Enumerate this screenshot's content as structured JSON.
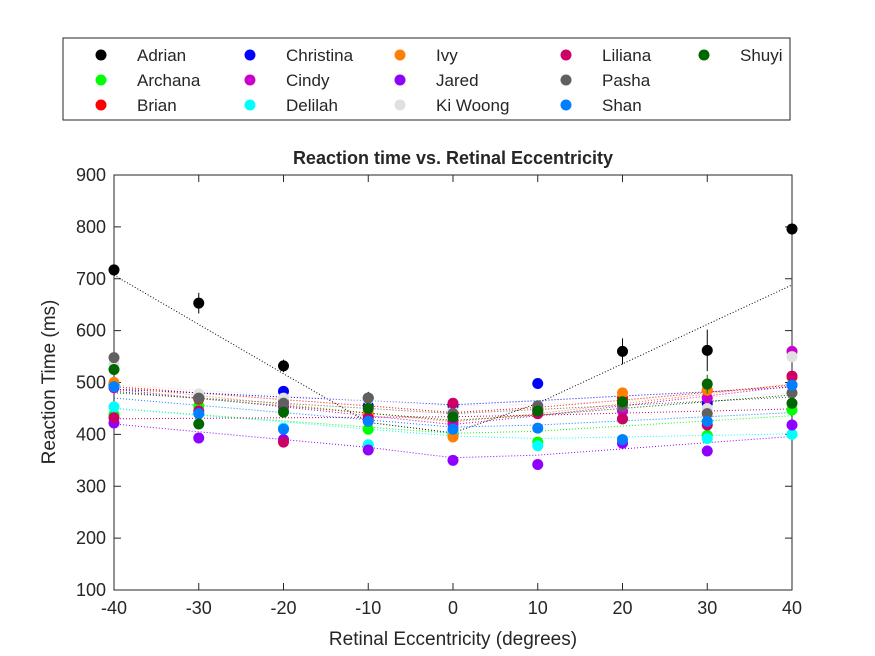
{
  "chart_data": {
    "type": "scatter",
    "title": "Reaction time vs. Retinal Eccentricity",
    "xlabel": "Retinal Eccentricity (degrees)",
    "ylabel": "Reaction Time (ms)",
    "xlim": [
      -40,
      40
    ],
    "ylim": [
      100,
      900
    ],
    "x_ticks": [
      -40,
      -30,
      -20,
      -10,
      0,
      10,
      20,
      30,
      40
    ],
    "y_ticks": [
      100,
      200,
      300,
      400,
      500,
      600,
      700,
      800,
      900
    ],
    "grid": false,
    "legend_position": "top, outside plot area, 5 columns",
    "fit_lines": "dotted V-shaped fit per series",
    "x": [
      -40,
      -30,
      -20,
      -10,
      0,
      10,
      20,
      30,
      40
    ],
    "series": [
      {
        "name": "Adrian",
        "color": "#000000",
        "values": [
          717,
          653,
          532,
          470,
          402,
          448,
          560,
          562,
          796
        ],
        "fit": [
          707,
          612,
          517,
          423,
          403,
          460,
          536,
          612,
          688
        ],
        "error": [
          8,
          20,
          12,
          12,
          10,
          12,
          25,
          40,
          10
        ]
      },
      {
        "name": "Archana",
        "color": "#00ff00",
        "values": [
          438,
          455,
          445,
          410,
          398,
          385,
          430,
          398,
          447
        ],
        "fit": [
          450,
          438,
          426,
          414,
          402,
          406,
          416,
          426,
          436
        ],
        "error": [
          8,
          8,
          8,
          8,
          8,
          8,
          8,
          8,
          8
        ]
      },
      {
        "name": "Brian",
        "color": "#ff0000",
        "values": [
          497,
          468,
          465,
          440,
          425,
          450,
          470,
          485,
          512
        ],
        "fit": [
          492,
          480,
          467,
          455,
          442,
          452,
          466,
          481,
          495
        ],
        "error": [
          8,
          8,
          10,
          8,
          8,
          8,
          10,
          8,
          8
        ]
      },
      {
        "name": "Christina",
        "color": "#0000ff",
        "values": [
          495,
          472,
          483,
          455,
          455,
          498,
          460,
          460,
          495
        ],
        "fit": [
          487,
          480,
          472,
          465,
          457,
          465,
          474,
          482,
          491
        ],
        "error": [
          8,
          8,
          8,
          8,
          8,
          10,
          8,
          8,
          8
        ]
      },
      {
        "name": "Cindy",
        "color": "#cc00cc",
        "values": [
          490,
          470,
          453,
          428,
          420,
          440,
          445,
          470,
          560
        ],
        "fit": [
          487,
          470,
          453,
          436,
          419,
          436,
          455,
          474,
          493
        ],
        "error": [
          8,
          8,
          8,
          8,
          8,
          8,
          8,
          8,
          8
        ]
      },
      {
        "name": "Delilah",
        "color": "#00ffff",
        "values": [
          453,
          440,
          412,
          380,
          405,
          378,
          390,
          392,
          400
        ],
        "fit": [
          450,
          437,
          424,
          410,
          397,
          392,
          395,
          398,
          401
        ],
        "error": [
          8,
          8,
          8,
          8,
          8,
          8,
          8,
          8,
          8
        ]
      },
      {
        "name": "Ivy",
        "color": "#ff8000",
        "values": [
          500,
          470,
          467,
          440,
          395,
          445,
          480,
          485,
          510
        ],
        "fit": [
          492,
          475,
          458,
          441,
          424,
          440,
          459,
          478,
          497
        ],
        "error": [
          8,
          8,
          8,
          8,
          8,
          8,
          10,
          8,
          8
        ]
      },
      {
        "name": "Jared",
        "color": "#8f00ff",
        "values": [
          422,
          393,
          390,
          370,
          350,
          342,
          383,
          368,
          418
        ],
        "fit": [
          420,
          405,
          390,
          375,
          355,
          360,
          372,
          384,
          396
        ],
        "error": [
          8,
          8,
          10,
          8,
          8,
          8,
          8,
          8,
          8
        ]
      },
      {
        "name": "Ki Woong",
        "color": "#e0e0e0",
        "values": [
          535,
          478,
          470,
          468,
          445,
          455,
          455,
          450,
          550
        ],
        "fit": [
          495,
          485,
          475,
          465,
          455,
          458,
          465,
          472,
          479
        ],
        "error": [
          8,
          8,
          8,
          8,
          8,
          8,
          8,
          8,
          8
        ]
      },
      {
        "name": "Liliana",
        "color": "#cc0066",
        "values": [
          432,
          445,
          385,
          432,
          460,
          440,
          430,
          418,
          512
        ],
        "fit": [
          430,
          431,
          432,
          433,
          434,
          437,
          441,
          445,
          449
        ],
        "error": [
          8,
          8,
          8,
          8,
          8,
          8,
          8,
          8,
          8
        ]
      },
      {
        "name": "Pasha",
        "color": "#606060",
        "values": [
          548,
          470,
          460,
          470,
          440,
          455,
          455,
          440,
          480
        ],
        "fit": [
          480,
          470,
          460,
          450,
          440,
          448,
          456,
          464,
          472
        ],
        "error": [
          8,
          8,
          8,
          8,
          8,
          8,
          8,
          8,
          8
        ]
      },
      {
        "name": "Shan",
        "color": "#0080ff",
        "values": [
          492,
          440,
          410,
          425,
          410,
          412,
          390,
          425,
          495
        ],
        "fit": [
          470,
          456,
          442,
          428,
          414,
          418,
          426,
          434,
          442
        ],
        "error": [
          8,
          8,
          8,
          8,
          8,
          8,
          8,
          8,
          8
        ]
      },
      {
        "name": "Shuyi",
        "color": "#006600",
        "values": [
          525,
          420,
          443,
          450,
          433,
          445,
          463,
          497,
          460
        ],
        "fit": [
          483,
          469,
          455,
          441,
          427,
          437,
          450,
          463,
          476
        ],
        "error": [
          8,
          8,
          8,
          8,
          8,
          8,
          10,
          18,
          8
        ]
      }
    ]
  }
}
